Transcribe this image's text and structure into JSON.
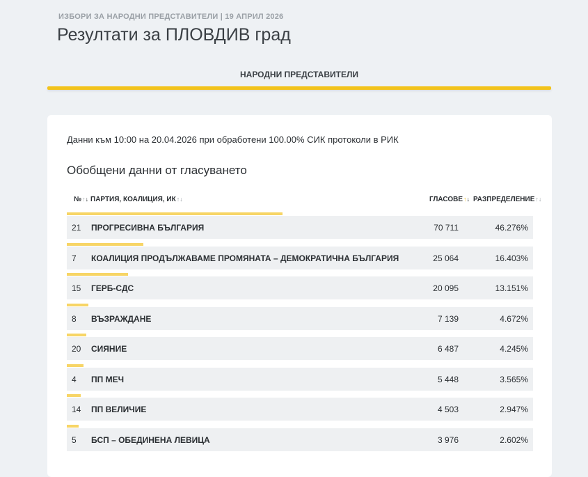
{
  "header": {
    "subtitle": "ИЗБОРИ ЗА НАРОДНИ ПРЕДСТАВИТЕЛИ | 19 АПРИЛ 2026",
    "title": "Резултати за ПЛОВДИВ град"
  },
  "tab": {
    "label": "НАРОДНИ ПРЕДСТАВИТЕЛИ"
  },
  "info": "Данни към 10:00 на 20.04.2026 при обработени 100.00% СИК протоколи в РИК",
  "section_title": "Обобщени данни от гласуването",
  "table": {
    "headers": {
      "num": "№",
      "party": "ПАРТИЯ, КОАЛИЦИЯ, ИК",
      "votes": "ГЛАСОВЕ",
      "distribution": "РАЗПРЕДЕЛЕНИЕ"
    },
    "rows": [
      {
        "num": "21",
        "party": "ПРОГРЕСИВНА БЪЛГАРИЯ",
        "votes": "70 711",
        "pct": "46.276%",
        "share": 0.46276
      },
      {
        "num": "7",
        "party": "КОАЛИЦИЯ ПРОДЪЛЖАВАМЕ ПРОМЯНАТА – ДЕМОКРАТИЧНА БЪЛГАРИЯ",
        "votes": "25 064",
        "pct": "16.403%",
        "share": 0.16403
      },
      {
        "num": "15",
        "party": "ГЕРБ-СДС",
        "votes": "20 095",
        "pct": "13.151%",
        "share": 0.13151
      },
      {
        "num": "8",
        "party": "ВЪЗРАЖДАНЕ",
        "votes": "7 139",
        "pct": "4.672%",
        "share": 0.04672
      },
      {
        "num": "20",
        "party": "СИЯНИЕ",
        "votes": "6 487",
        "pct": "4.245%",
        "share": 0.04245
      },
      {
        "num": "4",
        "party": "ПП МЕЧ",
        "votes": "5 448",
        "pct": "3.565%",
        "share": 0.03565
      },
      {
        "num": "14",
        "party": "ПП ВЕЛИЧИЕ",
        "votes": "4 503",
        "pct": "2.947%",
        "share": 0.02947
      },
      {
        "num": "5",
        "party": "БСП – ОБЕДИНЕНА ЛЕВИЦА",
        "votes": "3 976",
        "pct": "2.602%",
        "share": 0.02602
      }
    ]
  },
  "colors": {
    "accent": "#f2c31b",
    "bar": "#f7d566",
    "row_bg": "#eef0f2"
  }
}
